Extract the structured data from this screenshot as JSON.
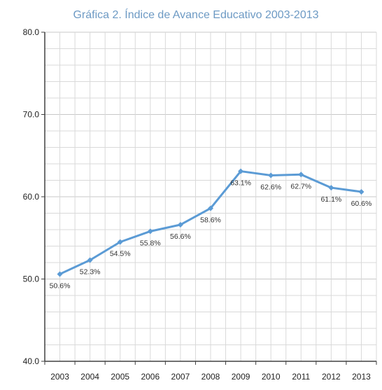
{
  "chart_data": {
    "type": "line",
    "title": "Gráfica 2. Índice de Avance Educativo 2003-2013",
    "xlabel": "",
    "ylabel": "",
    "categories": [
      "2003",
      "2004",
      "2005",
      "2006",
      "2007",
      "2008",
      "2009",
      "2010",
      "2011",
      "2012",
      "2013"
    ],
    "series": [
      {
        "name": "",
        "values": [
          50.6,
          52.3,
          54.5,
          55.8,
          56.6,
          58.6,
          63.1,
          62.6,
          62.7,
          61.1,
          60.6
        ],
        "labels": [
          "50.6%",
          "52.3%",
          "54.5%",
          "55.8%",
          "56.6%",
          "58.6%",
          "63.1%",
          "62.6%",
          "62.7%",
          "61.1%",
          "60.6%"
        ],
        "color": "#5b9bd5"
      }
    ],
    "ylim": [
      40,
      80
    ],
    "yticks": [
      "40.0",
      "50.0",
      "60.0",
      "70.0",
      "80.0"
    ],
    "grid": true,
    "grid_color": "#d9d9d9",
    "axis_color": "#404040"
  }
}
